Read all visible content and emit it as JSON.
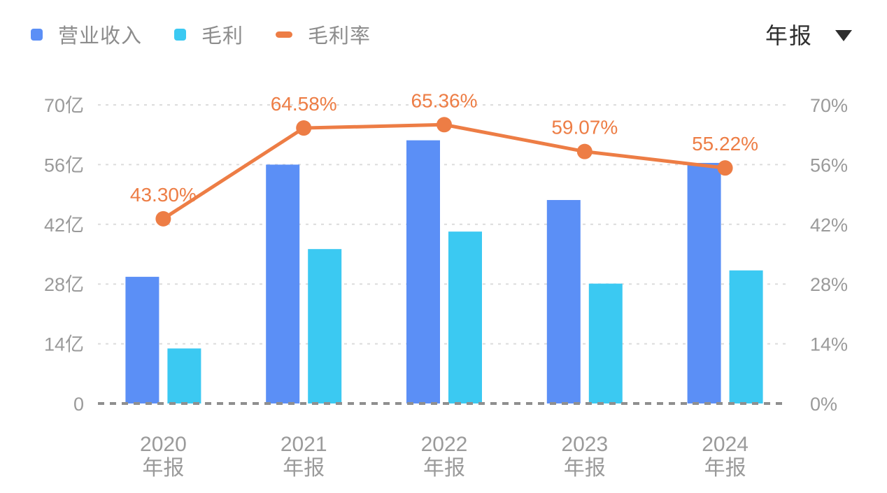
{
  "legend": {
    "items": [
      {
        "label": "营业收入",
        "color": "#5B8FF6",
        "marker": "square-icon"
      },
      {
        "label": "毛利",
        "color": "#3BC9F2",
        "marker": "square-icon"
      },
      {
        "label": "毛利率",
        "color": "#ED7D45",
        "marker": "dash-icon"
      }
    ]
  },
  "period_selector": {
    "value": "年报",
    "icon": "caret-down-icon"
  },
  "chart_data": {
    "type": "combo-bar-line",
    "title": "",
    "legend_position": "top-left",
    "grid": {
      "horizontal": true,
      "style": "dashed"
    },
    "categories": [
      {
        "year": "2020",
        "period": "年报"
      },
      {
        "year": "2021",
        "period": "年报"
      },
      {
        "year": "2022",
        "period": "年报"
      },
      {
        "year": "2023",
        "period": "年报"
      },
      {
        "year": "2024",
        "period": "年报"
      }
    ],
    "series": [
      {
        "name": "营业收入",
        "type": "bar",
        "axis": "left",
        "unit": "亿",
        "color": "#5B8FF6",
        "values": [
          29.7,
          56.0,
          61.7,
          47.7,
          56.4
        ]
      },
      {
        "name": "毛利",
        "type": "bar",
        "axis": "left",
        "unit": "亿",
        "color": "#3BC9F2",
        "values": [
          12.9,
          36.2,
          40.3,
          28.1,
          31.2
        ]
      },
      {
        "name": "毛利率",
        "type": "line",
        "axis": "right",
        "unit": "%",
        "color": "#ED7D45",
        "values": [
          43.3,
          64.58,
          65.36,
          59.07,
          55.22
        ],
        "labels": [
          "43.30%",
          "64.58%",
          "65.36%",
          "59.07%",
          "55.22%"
        ]
      }
    ],
    "left_axis": {
      "unit": "亿",
      "min": 0,
      "max": 70,
      "ticks": [
        {
          "label": "0",
          "value": 0
        },
        {
          "label": "14亿",
          "value": 14
        },
        {
          "label": "28亿",
          "value": 28
        },
        {
          "label": "42亿",
          "value": 42
        },
        {
          "label": "56亿",
          "value": 56
        },
        {
          "label": "70亿",
          "value": 70
        }
      ]
    },
    "right_axis": {
      "unit": "%",
      "min": 0,
      "max": 70,
      "ticks": [
        {
          "label": "0%",
          "value": 0
        },
        {
          "label": "14%",
          "value": 14
        },
        {
          "label": "28%",
          "value": 28
        },
        {
          "label": "42%",
          "value": 42
        },
        {
          "label": "56%",
          "value": 56
        },
        {
          "label": "70%",
          "value": 70
        }
      ]
    }
  }
}
